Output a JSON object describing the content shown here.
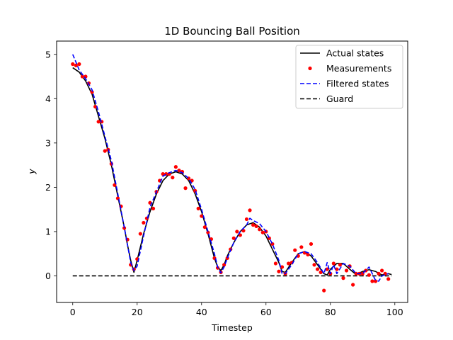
{
  "chart_data": {
    "type": "line",
    "title": "1D Bouncing Ball Position",
    "xlabel": "Timestep",
    "ylabel": "y",
    "xlim": [
      -5,
      104
    ],
    "ylim": [
      -0.6,
      5.3
    ],
    "xticks": [
      0,
      20,
      40,
      60,
      80,
      100
    ],
    "yticks": [
      0,
      1,
      2,
      3,
      4,
      5
    ],
    "legend_position": "top-right",
    "grid": false,
    "series": [
      {
        "name": "Actual states",
        "style": "solid",
        "color": "#000000",
        "x": [
          0,
          2,
          4,
          6,
          8,
          10,
          12,
          14,
          16,
          17,
          18,
          19,
          20,
          22,
          24,
          26,
          28,
          30,
          32,
          34,
          36,
          38,
          40,
          42,
          44,
          45,
          46,
          47,
          48,
          50,
          52,
          54,
          56,
          58,
          60,
          62,
          64,
          65,
          66,
          68,
          70,
          72,
          74,
          76,
          78,
          79,
          80,
          82,
          84,
          86,
          88,
          90,
          92,
          94,
          96,
          98,
          99
        ],
        "values": [
          4.7,
          4.6,
          4.4,
          4.1,
          3.6,
          3.1,
          2.5,
          1.8,
          1.1,
          0.7,
          0.35,
          0.08,
          0.35,
          0.95,
          1.45,
          1.85,
          2.15,
          2.3,
          2.35,
          2.3,
          2.15,
          1.85,
          1.45,
          0.95,
          0.4,
          0.2,
          0.12,
          0.25,
          0.45,
          0.75,
          1.0,
          1.15,
          1.2,
          1.1,
          0.9,
          0.6,
          0.3,
          0.1,
          0.08,
          0.3,
          0.5,
          0.55,
          0.45,
          0.25,
          0.05,
          0.02,
          0.15,
          0.28,
          0.28,
          0.15,
          0.03,
          0.1,
          0.14,
          0.1,
          0.02,
          0.05,
          0.03
        ]
      },
      {
        "name": "Measurements",
        "style": "dots",
        "color": "#ff0000",
        "x": [
          0,
          1,
          2,
          3,
          4,
          5,
          6,
          7,
          8,
          9,
          10,
          11,
          12,
          13,
          14,
          15,
          16,
          17,
          18,
          19,
          20,
          21,
          22,
          23,
          24,
          25,
          26,
          27,
          28,
          29,
          30,
          31,
          32,
          33,
          34,
          35,
          36,
          37,
          38,
          39,
          40,
          41,
          42,
          43,
          44,
          45,
          46,
          47,
          48,
          49,
          50,
          51,
          52,
          53,
          54,
          55,
          56,
          57,
          58,
          59,
          60,
          61,
          62,
          63,
          64,
          65,
          66,
          67,
          68,
          69,
          70,
          71,
          72,
          73,
          74,
          75,
          76,
          77,
          78,
          79,
          80,
          81,
          82,
          83,
          84,
          85,
          86,
          87,
          88,
          89,
          90,
          91,
          92,
          93,
          94,
          95,
          96,
          97,
          98
        ],
        "values": [
          4.78,
          4.75,
          4.78,
          4.5,
          4.5,
          4.35,
          4.15,
          3.82,
          3.48,
          3.48,
          2.82,
          2.85,
          2.53,
          2.05,
          1.75,
          1.57,
          1.08,
          0.82,
          0.25,
          0.15,
          0.38,
          0.95,
          1.2,
          1.3,
          1.65,
          1.52,
          1.9,
          2.15,
          2.3,
          2.3,
          2.3,
          2.22,
          2.46,
          2.38,
          2.35,
          1.98,
          2.2,
          2.15,
          1.92,
          1.52,
          1.35,
          1.1,
          0.98,
          0.83,
          0.4,
          0.18,
          0.08,
          0.25,
          0.4,
          0.6,
          0.85,
          1.0,
          0.92,
          1.02,
          1.28,
          1.48,
          1.15,
          1.12,
          1.05,
          0.98,
          1.0,
          0.85,
          0.72,
          0.28,
          0.1,
          0.2,
          0.05,
          0.28,
          0.3,
          0.58,
          0.45,
          0.65,
          0.52,
          0.48,
          0.72,
          0.25,
          0.15,
          0.08,
          -0.33,
          0.15,
          0.05,
          0.28,
          0.15,
          0.25,
          -0.05,
          0.12,
          0.22,
          -0.2,
          0.05,
          0.05,
          0.05,
          0.12,
          0.02,
          -0.12,
          -0.12,
          0.05,
          0.12,
          0.05,
          -0.07
        ]
      },
      {
        "name": "Filtered states",
        "style": "dashed",
        "color": "#0000ff",
        "x": [
          0,
          2,
          4,
          6,
          8,
          10,
          12,
          14,
          16,
          17,
          18,
          19,
          20,
          22,
          24,
          26,
          28,
          30,
          32,
          34,
          36,
          38,
          40,
          42,
          44,
          45,
          46,
          47,
          48,
          50,
          52,
          54,
          55,
          56,
          58,
          60,
          62,
          64,
          65,
          66,
          68,
          70,
          72,
          74,
          76,
          78,
          79,
          80,
          81,
          82,
          84,
          86,
          88,
          90,
          92,
          94,
          95,
          96,
          98
        ],
        "values": [
          5.0,
          4.65,
          4.45,
          4.2,
          3.7,
          3.15,
          2.6,
          1.85,
          1.1,
          0.7,
          0.3,
          0.12,
          0.22,
          0.9,
          1.55,
          1.9,
          2.25,
          2.33,
          2.38,
          2.33,
          2.2,
          1.95,
          1.5,
          1.0,
          0.5,
          0.2,
          0.07,
          0.2,
          0.4,
          0.75,
          1.0,
          1.15,
          1.3,
          1.25,
          1.18,
          1.0,
          0.72,
          0.35,
          0.05,
          0.05,
          0.25,
          0.5,
          0.55,
          0.5,
          0.3,
          0.05,
          0.3,
          0.05,
          0.25,
          0.05,
          0.28,
          0.22,
          0.05,
          0.05,
          0.2,
          -0.1,
          -0.12,
          0.0,
          0.05
        ]
      },
      {
        "name": "Guard",
        "style": "dashed",
        "color": "#000000",
        "x": [
          0,
          99
        ],
        "values": [
          0,
          0
        ]
      }
    ]
  }
}
